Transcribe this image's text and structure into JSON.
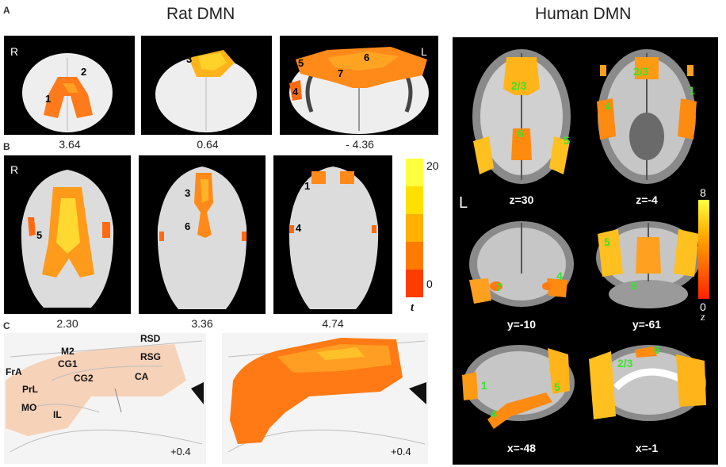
{
  "titles": {
    "rat": "Rat DMN",
    "human": "Human DMN"
  },
  "panel_letters": {
    "a": "A",
    "b": "B",
    "c": "C"
  },
  "row_a": {
    "coords": [
      "3.64",
      "0.64",
      "- 4.36"
    ],
    "side_left": "R",
    "side_right": "L",
    "labels": [
      "1",
      "2",
      "3",
      "4",
      "5",
      "6",
      "7"
    ]
  },
  "row_b": {
    "coords": [
      "2.30",
      "3.36",
      "4.74"
    ],
    "side_left": "R",
    "labels": [
      "5",
      "3",
      "6",
      "1",
      "4"
    ]
  },
  "rat_colorbar": {
    "max": "20",
    "min": "0",
    "unit": "t",
    "colors": [
      "#ff3c00",
      "#ff7a00",
      "#ffb000",
      "#ffe000",
      "#ffff40"
    ]
  },
  "row_c": {
    "regions": [
      "RSD",
      "M2",
      "RSG",
      "CG1",
      "FrA",
      "CG2",
      "CA",
      "PrL",
      "MO",
      "IL"
    ],
    "coords": [
      "+0.4",
      "+0.4"
    ]
  },
  "human": {
    "coords": [
      "z=30",
      "z=-4",
      "y=-10",
      "y=-61",
      "x=-48",
      "x=-1"
    ],
    "side": "L",
    "axial1_labels": [
      "2/3",
      "6",
      "5"
    ],
    "axial2_labels": [
      "2/3",
      "4",
      "1"
    ],
    "coronal1_labels": [
      "7",
      "4"
    ],
    "coronal2_labels": [
      "5",
      "6"
    ],
    "sag1_labels": [
      "1",
      "4",
      "5"
    ],
    "sag2_labels": [
      "2/3",
      "6"
    ],
    "colorbar": {
      "max": "8",
      "min": "0",
      "unit": "z"
    }
  }
}
